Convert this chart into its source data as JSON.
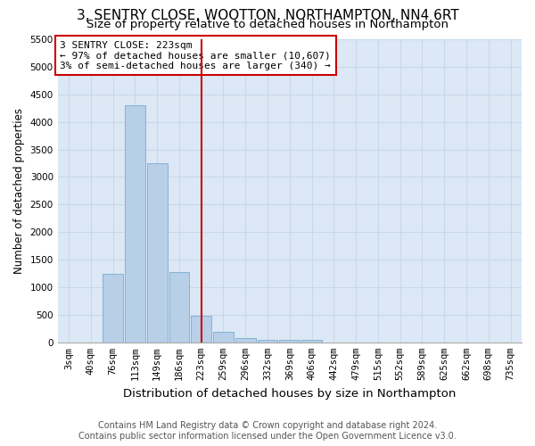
{
  "title": "3, SENTRY CLOSE, WOOTTON, NORTHAMPTON, NN4 6RT",
  "subtitle": "Size of property relative to detached houses in Northampton",
  "xlabel": "Distribution of detached houses by size in Northampton",
  "ylabel": "Number of detached properties",
  "footer_line1": "Contains HM Land Registry data © Crown copyright and database right 2024.",
  "footer_line2": "Contains public sector information licensed under the Open Government Licence v3.0.",
  "annotation_title": "3 SENTRY CLOSE: 223sqm",
  "annotation_line2": "← 97% of detached houses are smaller (10,607)",
  "annotation_line3": "3% of semi-detached houses are larger (340) →",
  "property_size_sqm": 223,
  "categories": [
    "3sqm",
    "40sqm",
    "76sqm",
    "113sqm",
    "149sqm",
    "186sqm",
    "223sqm",
    "259sqm",
    "296sqm",
    "332sqm",
    "369sqm",
    "406sqm",
    "442sqm",
    "479sqm",
    "515sqm",
    "552sqm",
    "589sqm",
    "625sqm",
    "662sqm",
    "698sqm",
    "735sqm"
  ],
  "values": [
    0,
    0,
    1250,
    4300,
    3250,
    1280,
    490,
    190,
    75,
    50,
    45,
    45,
    0,
    0,
    0,
    0,
    0,
    0,
    0,
    0,
    0
  ],
  "bar_color": "#b8cfe8",
  "bar_edge_color": "#7aaad0",
  "vline_color": "#cc0000",
  "vline_x_index": 6,
  "annotation_box_color": "#cc0000",
  "grid_color": "#c8d8ec",
  "background_color": "#dce8f5",
  "ylim": [
    0,
    5500
  ],
  "yticks": [
    0,
    500,
    1000,
    1500,
    2000,
    2500,
    3000,
    3500,
    4000,
    4500,
    5000,
    5500
  ],
  "title_fontsize": 11,
  "subtitle_fontsize": 9.5,
  "xlabel_fontsize": 9.5,
  "ylabel_fontsize": 8.5,
  "tick_fontsize": 7.5,
  "annotation_fontsize": 8,
  "footer_fontsize": 7
}
